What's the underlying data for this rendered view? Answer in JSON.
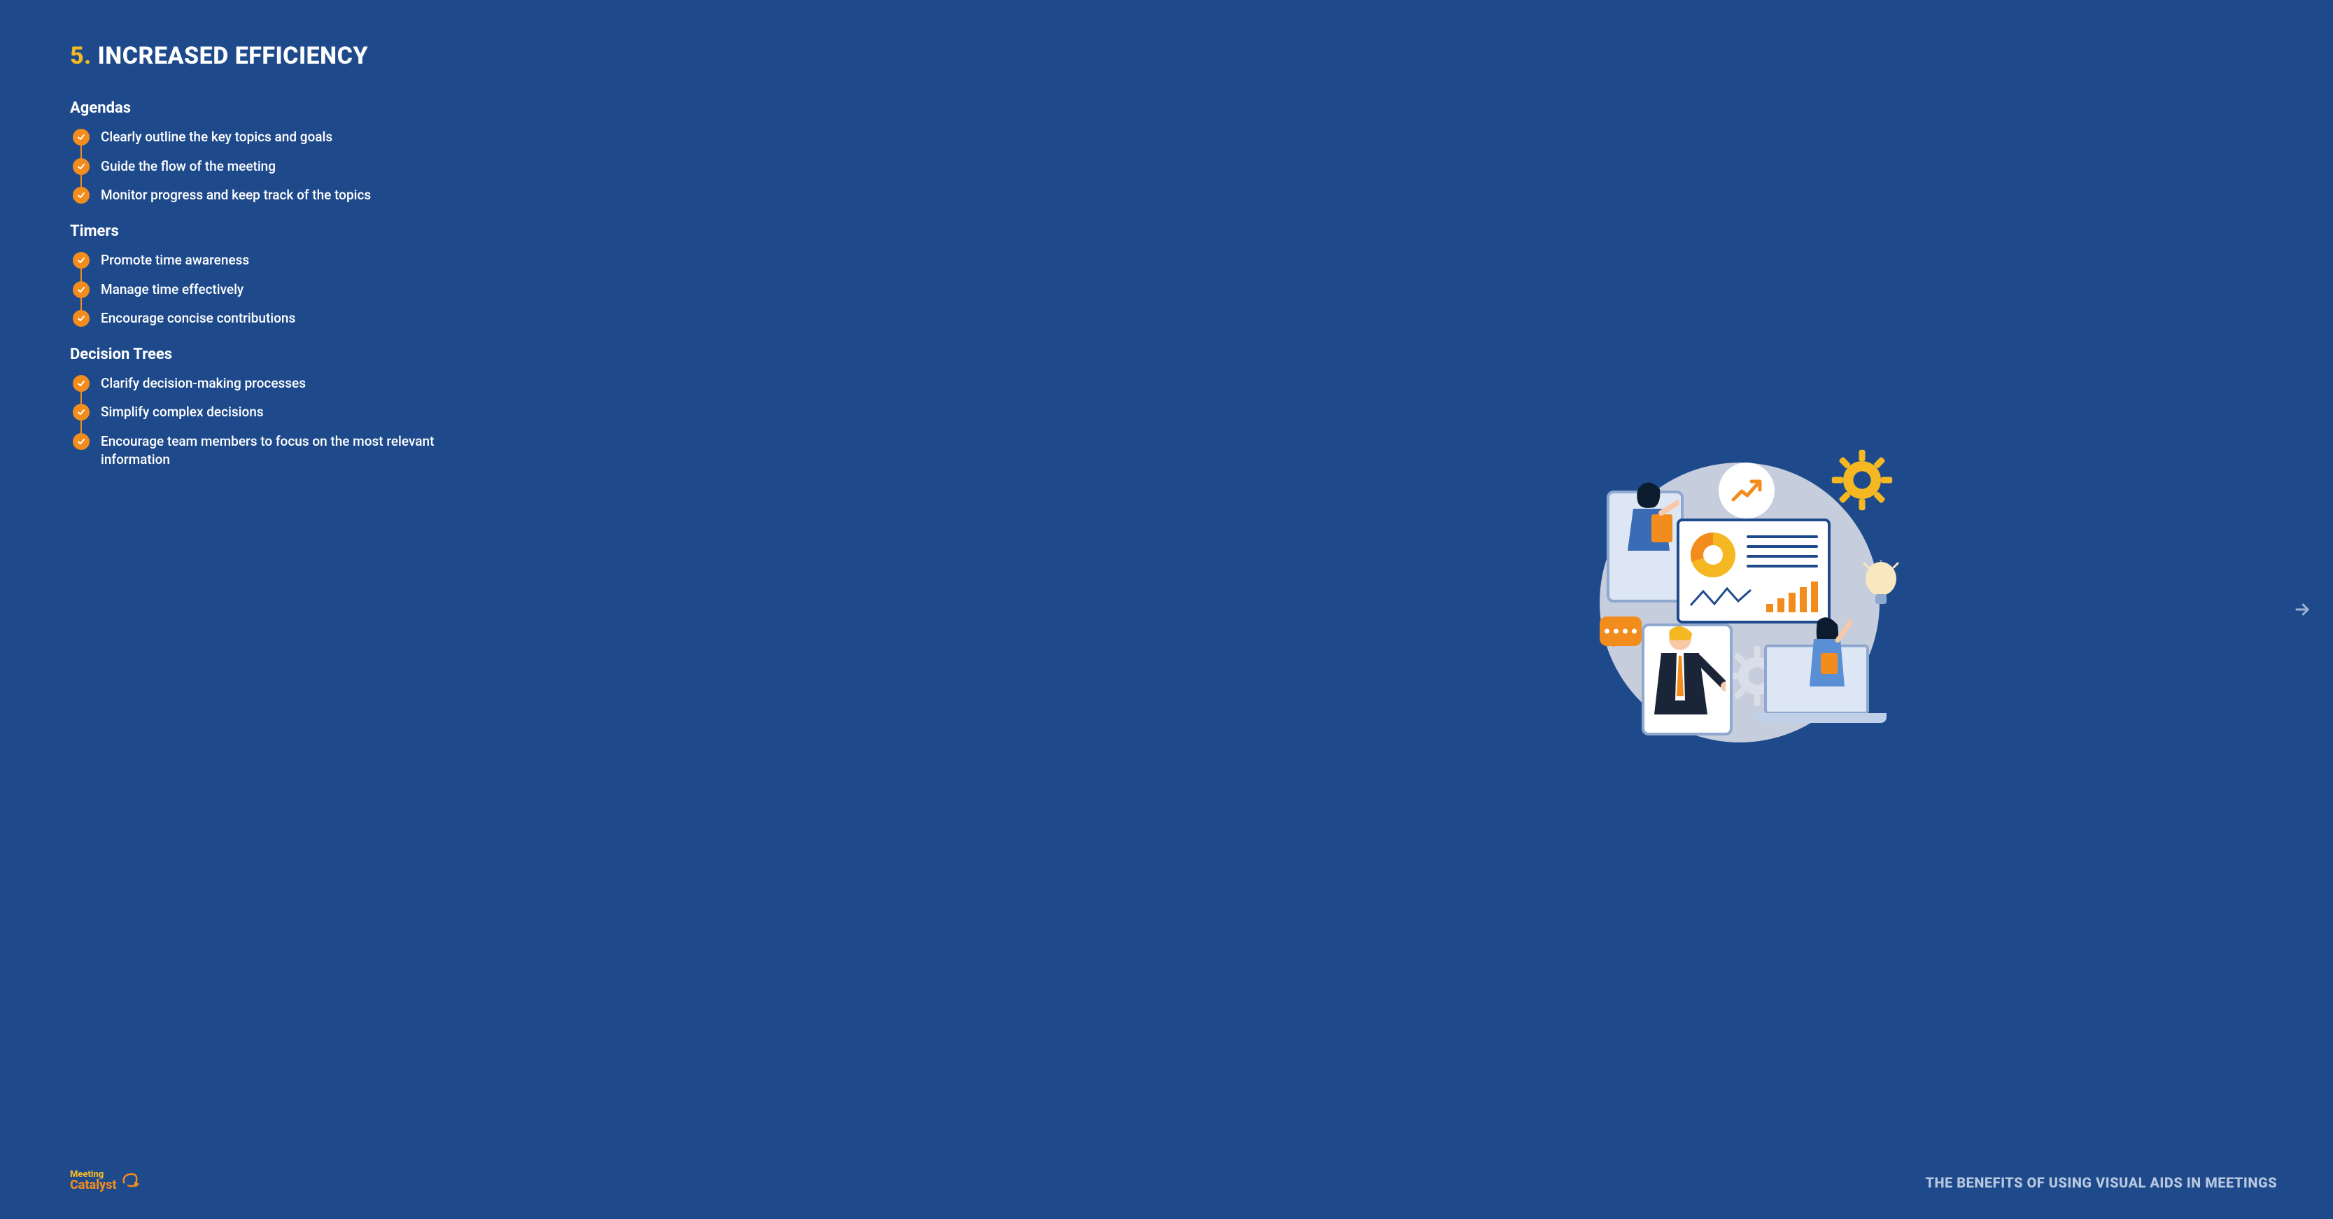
{
  "colors": {
    "background": "#1e4a8c",
    "accent_yellow": "#f5b823",
    "accent_orange": "#f28c1c",
    "text_primary": "#ffffff",
    "text_muted": "#b9c8df",
    "illus_bg_circle": "#c6cddc",
    "illus_light_blue": "#dce6f5",
    "illus_border_blue": "#8fa8cf"
  },
  "heading": {
    "number": "5.",
    "title": "INCREASED EFFICIENCY"
  },
  "sections": [
    {
      "title": "Agendas",
      "items": [
        "Clearly outline the key topics and goals",
        "Guide the flow of the meeting",
        "Monitor progress and keep track of the topics"
      ]
    },
    {
      "title": "Timers",
      "items": [
        "Promote time awareness",
        "Manage time effectively",
        "Encourage concise contributions"
      ]
    },
    {
      "title": "Decision Trees",
      "items": [
        "Clarify decision-making processes",
        "Simplify complex decisions",
        "Encourage team members to focus on the most relevant information"
      ]
    }
  ],
  "footer": {
    "logo_line1": "Meeting",
    "logo_line2": "Catalyst",
    "caption": "THE BENEFITS OF USING VISUAL AIDS IN MEETINGS"
  },
  "illustration": {
    "type": "infographic",
    "bar_heights": [
      12,
      20,
      28,
      36,
      44
    ]
  }
}
